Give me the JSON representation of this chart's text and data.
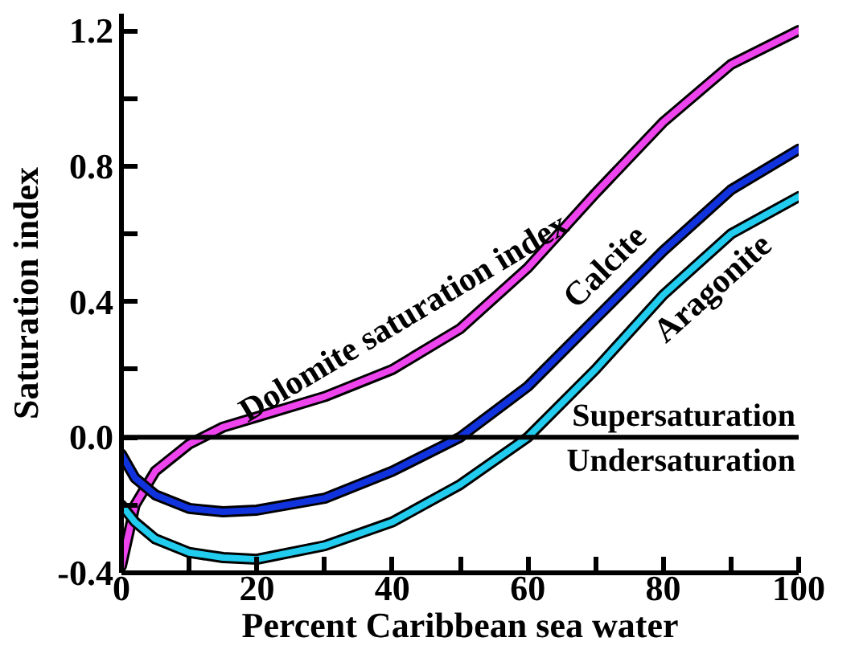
{
  "chart_data": {
    "type": "line",
    "xlabel": "Percent Caribbean sea water",
    "ylabel": "Saturation index",
    "x": [
      0,
      2,
      5,
      10,
      15,
      20,
      30,
      40,
      50,
      60,
      70,
      80,
      90,
      100
    ],
    "series": [
      {
        "name": "Dolomite saturation index",
        "color": "#ee44ee",
        "values": [
          -0.38,
          -0.2,
          -0.1,
          -0.02,
          0.03,
          0.06,
          0.12,
          0.2,
          0.32,
          0.5,
          0.72,
          0.93,
          1.1,
          1.2
        ]
      },
      {
        "name": "Calcite",
        "color": "#1133dd",
        "values": [
          -0.05,
          -0.12,
          -0.17,
          -0.21,
          -0.22,
          -0.215,
          -0.18,
          -0.1,
          0.0,
          0.15,
          0.35,
          0.55,
          0.73,
          0.85
        ]
      },
      {
        "name": "Aragonite",
        "color": "#22ccee",
        "values": [
          -0.2,
          -0.25,
          -0.3,
          -0.34,
          -0.355,
          -0.36,
          -0.32,
          -0.25,
          -0.14,
          0.0,
          0.2,
          0.42,
          0.6,
          0.71
        ]
      }
    ],
    "xlim": [
      0,
      100
    ],
    "ylim": [
      -0.4,
      1.25
    ],
    "xticks": [
      0,
      {
        "value": 10,
        "label": null
      },
      20,
      {
        "value": 30,
        "label": null
      },
      40,
      {
        "value": 50,
        "label": null
      },
      60,
      {
        "value": 70,
        "label": null
      },
      80,
      {
        "value": 90,
        "label": null
      },
      100
    ],
    "yticks": [
      {
        "value": -0.4,
        "label": "-0.4"
      },
      {
        "value": -0.2,
        "label": null
      },
      {
        "value": 0,
        "label": "0.0"
      },
      {
        "value": 0.2,
        "label": null
      },
      0.4,
      {
        "value": 0.6,
        "label": null
      },
      0.8,
      {
        "value": 1.0,
        "label": null
      },
      1.2
    ],
    "ref_lines": [
      {
        "axis": "y",
        "value": 0,
        "label": null,
        "color": "#000000"
      }
    ],
    "annotations": [
      {
        "text": "Supersaturation",
        "x": 100,
        "y": 0
      },
      {
        "text": "Undersaturation",
        "x": 100,
        "y": 0
      }
    ],
    "grid": false,
    "marker": "none",
    "line_style": "solid"
  }
}
